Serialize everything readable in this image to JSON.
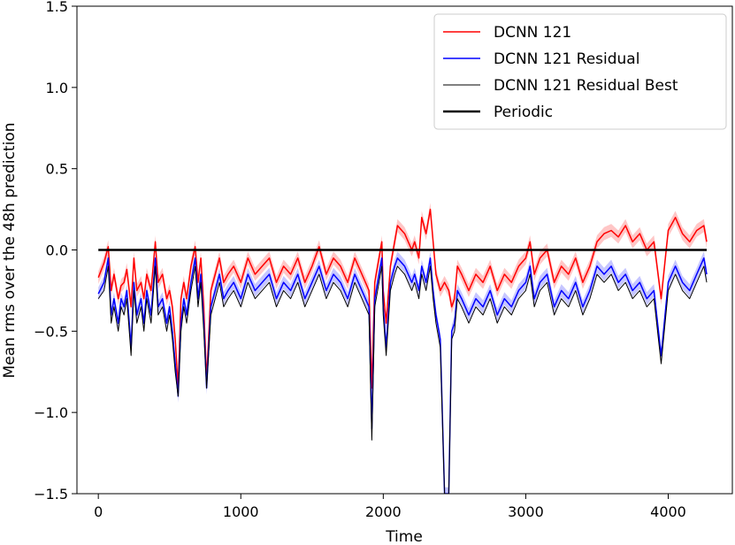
{
  "chart_data": {
    "type": "line",
    "title": "",
    "xlabel": "Time",
    "ylabel": "Mean rms over the 48h prediction",
    "xlim": [
      -150,
      4450
    ],
    "ylim": [
      -1.5,
      1.5
    ],
    "x_ticks": [
      0,
      1000,
      2000,
      3000,
      4000
    ],
    "x_tick_labels": [
      "0",
      "1000",
      "2000",
      "3000",
      "4000"
    ],
    "y_ticks": [
      1.5,
      1.0,
      0.5,
      0.0,
      -0.5,
      -1.0,
      -1.5
    ],
    "y_tick_labels": [
      "1.5",
      "1.0",
      "0.5",
      "0.0",
      "−0.5",
      "−1.0",
      "−1.5"
    ],
    "grid": false,
    "legend_position": "top-right",
    "series": [
      {
        "name": "DCNN 121",
        "color": "#ff0000",
        "band_color": "#ff8080",
        "x": [
          0,
          40,
          70,
          90,
          110,
          140,
          160,
          180,
          200,
          230,
          250,
          270,
          300,
          320,
          340,
          370,
          400,
          420,
          450,
          480,
          500,
          520,
          540,
          560,
          580,
          600,
          620,
          650,
          680,
          700,
          720,
          740,
          760,
          790,
          820,
          850,
          880,
          910,
          950,
          1000,
          1050,
          1100,
          1150,
          1200,
          1250,
          1300,
          1350,
          1400,
          1450,
          1500,
          1550,
          1600,
          1650,
          1700,
          1750,
          1800,
          1850,
          1900,
          1920,
          1940,
          1960,
          1990,
          2000,
          2020,
          2050,
          2080,
          2100,
          2150,
          2200,
          2220,
          2250,
          2270,
          2300,
          2330,
          2350,
          2370,
          2400,
          2430,
          2460,
          2480,
          2500,
          2520,
          2550,
          2600,
          2650,
          2700,
          2750,
          2800,
          2850,
          2900,
          2950,
          3000,
          3030,
          3060,
          3100,
          3150,
          3200,
          3250,
          3300,
          3350,
          3400,
          3450,
          3500,
          3550,
          3600,
          3650,
          3700,
          3750,
          3800,
          3850,
          3900,
          3950,
          4000,
          4050,
          4100,
          4150,
          4200,
          4250,
          4270
        ],
        "y": [
          -0.17,
          -0.08,
          0.02,
          -0.25,
          -0.15,
          -0.3,
          -0.22,
          -0.2,
          -0.12,
          -0.35,
          -0.05,
          -0.25,
          -0.2,
          -0.3,
          -0.15,
          -0.25,
          0.05,
          -0.2,
          -0.15,
          -0.3,
          -0.25,
          -0.35,
          -0.55,
          -0.85,
          -0.3,
          -0.2,
          -0.3,
          -0.1,
          0.02,
          -0.2,
          -0.05,
          -0.35,
          -0.8,
          -0.25,
          -0.15,
          -0.05,
          -0.2,
          -0.15,
          -0.1,
          -0.2,
          -0.05,
          -0.15,
          -0.1,
          -0.05,
          -0.2,
          -0.1,
          -0.15,
          -0.05,
          -0.2,
          -0.1,
          0.02,
          -0.15,
          -0.05,
          -0.1,
          -0.2,
          -0.05,
          -0.15,
          -0.25,
          -0.85,
          -0.2,
          -0.1,
          0.05,
          -0.25,
          -0.45,
          -0.1,
          0.05,
          0.15,
          0.1,
          0.0,
          0.05,
          -0.05,
          0.2,
          0.1,
          0.25,
          0.05,
          -0.15,
          -0.25,
          -0.2,
          -0.25,
          -0.35,
          -0.3,
          -0.1,
          -0.15,
          -0.25,
          -0.15,
          -0.2,
          -0.1,
          -0.25,
          -0.15,
          -0.2,
          -0.1,
          -0.05,
          0.05,
          -0.15,
          -0.05,
          0.0,
          -0.2,
          -0.1,
          -0.15,
          -0.05,
          -0.2,
          -0.1,
          0.05,
          0.1,
          0.12,
          0.08,
          0.15,
          0.05,
          0.1,
          0.0,
          0.05,
          -0.3,
          0.12,
          0.2,
          0.1,
          0.05,
          0.12,
          0.15,
          0.05
        ]
      },
      {
        "name": "DCNN 121 Residual",
        "color": "#0000ff",
        "band_color": "#8080ff",
        "x": [
          0,
          40,
          70,
          90,
          110,
          140,
          160,
          180,
          200,
          230,
          250,
          270,
          300,
          320,
          340,
          370,
          400,
          420,
          450,
          480,
          500,
          520,
          540,
          560,
          580,
          600,
          620,
          650,
          680,
          700,
          720,
          740,
          760,
          790,
          820,
          850,
          880,
          910,
          950,
          1000,
          1050,
          1100,
          1150,
          1200,
          1250,
          1300,
          1350,
          1400,
          1450,
          1500,
          1550,
          1600,
          1650,
          1700,
          1750,
          1800,
          1850,
          1900,
          1920,
          1940,
          1960,
          1990,
          2000,
          2020,
          2050,
          2080,
          2100,
          2150,
          2200,
          2220,
          2250,
          2270,
          2300,
          2330,
          2350,
          2370,
          2400,
          2430,
          2460,
          2480,
          2500,
          2520,
          2550,
          2600,
          2650,
          2700,
          2750,
          2800,
          2850,
          2900,
          2950,
          3000,
          3030,
          3060,
          3100,
          3150,
          3200,
          3250,
          3300,
          3350,
          3400,
          3450,
          3500,
          3550,
          3600,
          3650,
          3700,
          3750,
          3800,
          3850,
          3900,
          3950,
          4000,
          4050,
          4100,
          4150,
          4200,
          4250,
          4270
        ],
        "y": [
          -0.27,
          -0.2,
          -0.05,
          -0.4,
          -0.3,
          -0.45,
          -0.3,
          -0.35,
          -0.25,
          -0.6,
          -0.2,
          -0.4,
          -0.3,
          -0.45,
          -0.25,
          -0.4,
          -0.05,
          -0.35,
          -0.3,
          -0.45,
          -0.35,
          -0.5,
          -0.7,
          -0.9,
          -0.45,
          -0.3,
          -0.4,
          -0.2,
          -0.05,
          -0.3,
          -0.15,
          -0.45,
          -0.85,
          -0.35,
          -0.25,
          -0.15,
          -0.3,
          -0.25,
          -0.2,
          -0.3,
          -0.15,
          -0.25,
          -0.2,
          -0.15,
          -0.3,
          -0.2,
          -0.25,
          -0.15,
          -0.3,
          -0.2,
          -0.1,
          -0.25,
          -0.15,
          -0.2,
          -0.3,
          -0.15,
          -0.25,
          -0.35,
          -1.1,
          -0.3,
          -0.2,
          -0.05,
          -0.35,
          -0.6,
          -0.2,
          -0.1,
          -0.05,
          -0.1,
          -0.2,
          -0.15,
          -0.25,
          -0.1,
          -0.2,
          -0.05,
          -0.25,
          -0.4,
          -0.55,
          -1.5,
          -1.5,
          -0.5,
          -0.45,
          -0.25,
          -0.3,
          -0.4,
          -0.3,
          -0.35,
          -0.25,
          -0.4,
          -0.3,
          -0.35,
          -0.25,
          -0.2,
          -0.1,
          -0.3,
          -0.2,
          -0.15,
          -0.35,
          -0.25,
          -0.3,
          -0.2,
          -0.35,
          -0.25,
          -0.1,
          -0.15,
          -0.1,
          -0.2,
          -0.15,
          -0.25,
          -0.2,
          -0.3,
          -0.25,
          -0.65,
          -0.2,
          -0.1,
          -0.2,
          -0.25,
          -0.15,
          -0.05,
          -0.15
        ]
      },
      {
        "name": "DCNN 121 Residual Best",
        "color": "#000000",
        "x": [
          0,
          40,
          70,
          90,
          110,
          140,
          160,
          180,
          200,
          230,
          250,
          270,
          300,
          320,
          340,
          370,
          400,
          420,
          450,
          480,
          500,
          520,
          540,
          560,
          580,
          600,
          620,
          650,
          680,
          700,
          720,
          740,
          760,
          790,
          820,
          850,
          880,
          910,
          950,
          1000,
          1050,
          1100,
          1150,
          1200,
          1250,
          1300,
          1350,
          1400,
          1450,
          1500,
          1550,
          1600,
          1650,
          1700,
          1750,
          1800,
          1850,
          1900,
          1920,
          1940,
          1960,
          1990,
          2000,
          2020,
          2050,
          2080,
          2100,
          2150,
          2200,
          2220,
          2250,
          2270,
          2300,
          2330,
          2350,
          2370,
          2400,
          2430,
          2460,
          2480,
          2500,
          2520,
          2550,
          2600,
          2650,
          2700,
          2750,
          2800,
          2850,
          2900,
          2950,
          3000,
          3030,
          3060,
          3100,
          3150,
          3200,
          3250,
          3300,
          3350,
          3400,
          3450,
          3500,
          3550,
          3600,
          3650,
          3700,
          3750,
          3800,
          3850,
          3900,
          3950,
          4000,
          4050,
          4100,
          4150,
          4200,
          4250,
          4270
        ],
        "y": [
          -0.3,
          -0.25,
          -0.1,
          -0.45,
          -0.35,
          -0.5,
          -0.35,
          -0.4,
          -0.3,
          -0.65,
          -0.25,
          -0.45,
          -0.35,
          -0.5,
          -0.3,
          -0.45,
          -0.1,
          -0.4,
          -0.35,
          -0.5,
          -0.4,
          -0.55,
          -0.75,
          -0.9,
          -0.5,
          -0.35,
          -0.45,
          -0.25,
          -0.1,
          -0.35,
          -0.2,
          -0.5,
          -0.85,
          -0.4,
          -0.3,
          -0.2,
          -0.35,
          -0.3,
          -0.25,
          -0.35,
          -0.2,
          -0.3,
          -0.25,
          -0.2,
          -0.35,
          -0.25,
          -0.3,
          -0.2,
          -0.35,
          -0.25,
          -0.15,
          -0.3,
          -0.2,
          -0.25,
          -0.35,
          -0.2,
          -0.3,
          -0.4,
          -1.17,
          -0.35,
          -0.25,
          -0.1,
          -0.4,
          -0.65,
          -0.25,
          -0.15,
          -0.1,
          -0.15,
          -0.25,
          -0.2,
          -0.3,
          -0.15,
          -0.25,
          -0.1,
          -0.3,
          -0.45,
          -0.6,
          -1.5,
          -1.5,
          -0.55,
          -0.5,
          -0.3,
          -0.35,
          -0.45,
          -0.35,
          -0.4,
          -0.3,
          -0.45,
          -0.35,
          -0.4,
          -0.3,
          -0.25,
          -0.15,
          -0.35,
          -0.25,
          -0.2,
          -0.4,
          -0.3,
          -0.35,
          -0.25,
          -0.4,
          -0.3,
          -0.15,
          -0.2,
          -0.15,
          -0.25,
          -0.2,
          -0.3,
          -0.25,
          -0.35,
          -0.3,
          -0.7,
          -0.25,
          -0.15,
          -0.25,
          -0.3,
          -0.2,
          -0.1,
          -0.2
        ]
      },
      {
        "name": "Periodic",
        "color": "#000000",
        "x": [
          0,
          4270
        ],
        "y": [
          0.0,
          0.0
        ]
      }
    ]
  }
}
